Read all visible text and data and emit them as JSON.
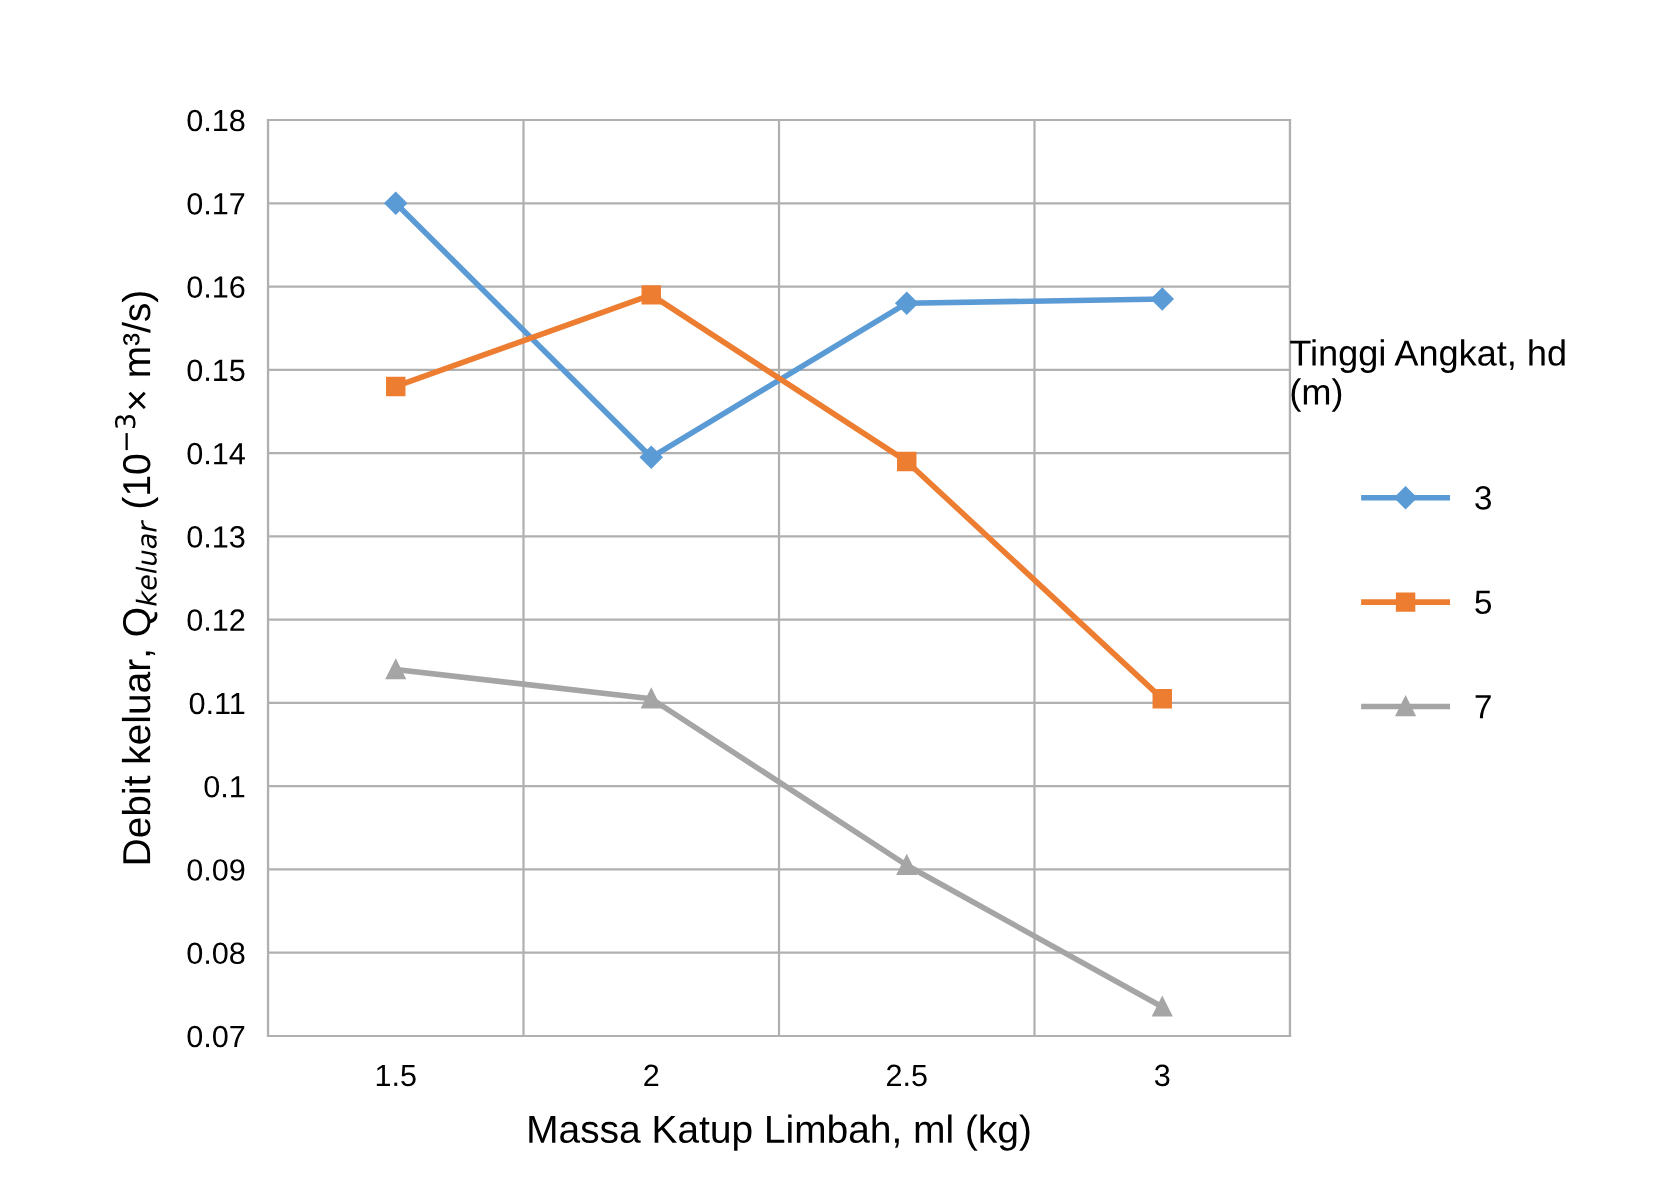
{
  "chart_data": {
    "type": "line",
    "xlabel": "Massa Katup Limbah, ml (kg)",
    "ylabel": "Debit keluar, Q$_{keluar}$ (10$^{−3}$× m³/s)",
    "legend_title": "Tinggi Angkat, hd\n(m)",
    "categories": [
      "1.5",
      "2",
      "2.5",
      "3"
    ],
    "series": [
      {
        "name": "3",
        "color": "#5b9bd5",
        "marker": "diamond",
        "values": [
          0.17,
          0.1395,
          0.158,
          0.1585
        ]
      },
      {
        "name": "5",
        "color": "#ed7d31",
        "marker": "square",
        "values": [
          0.148,
          0.159,
          0.139,
          0.1105
        ]
      },
      {
        "name": "7",
        "color": "#a5a5a5",
        "marker": "triangle",
        "values": [
          0.114,
          0.1105,
          0.0905,
          0.0735
        ]
      }
    ],
    "ylim": [
      0.07,
      0.18
    ],
    "yticks": [
      0.07,
      0.08,
      0.09,
      0.1,
      0.11,
      0.12,
      0.13,
      0.14,
      0.15,
      0.16,
      0.17,
      0.18
    ],
    "grid": true,
    "legend": "right",
    "line_style": "solid"
  }
}
